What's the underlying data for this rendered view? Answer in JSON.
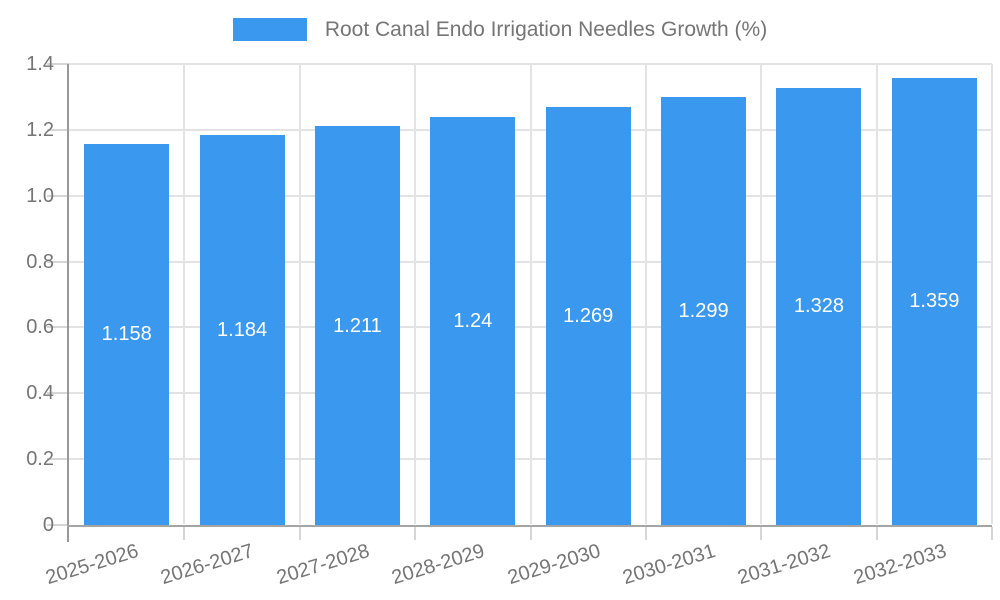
{
  "legend": {
    "label": "Root Canal Endo Irrigation Needles Growth (%)"
  },
  "colors": {
    "bar": "#3A99EE",
    "grid": "#E3E3E3",
    "tick": "#D6D6D6",
    "axis": "#A5A5A5",
    "axis_dark": "#999999",
    "text": "#757575",
    "bar_label": "#FFFFFF",
    "background": "#FFFFFF"
  },
  "chart_data": {
    "type": "bar",
    "title": "Root Canal Endo Irrigation Needles Growth (%)",
    "categories": [
      "2025-2026",
      "2026-2027",
      "2027-2028",
      "2028-2029",
      "2029-2030",
      "2030-2031",
      "2031-2032",
      "2032-2033"
    ],
    "values": [
      1.158,
      1.184,
      1.211,
      1.24,
      1.269,
      1.299,
      1.328,
      1.359
    ],
    "value_labels": [
      "1.158",
      "1.184",
      "1.211",
      "1.24",
      "1.269",
      "1.299",
      "1.328",
      "1.359"
    ],
    "xlabel": "",
    "ylabel": "",
    "ylim": [
      0,
      1.4
    ],
    "y_ticks": [
      0,
      0.2,
      0.4,
      0.6,
      0.8,
      1.0,
      1.2,
      1.4
    ],
    "y_tick_labels": [
      "0",
      "0.2",
      "0.4",
      "0.6",
      "0.8",
      "1.0",
      "1.2",
      "1.4"
    ],
    "grid": true,
    "legend_position": "top",
    "bar_value_label_position": "center",
    "x_label_rotation_deg": -17
  }
}
